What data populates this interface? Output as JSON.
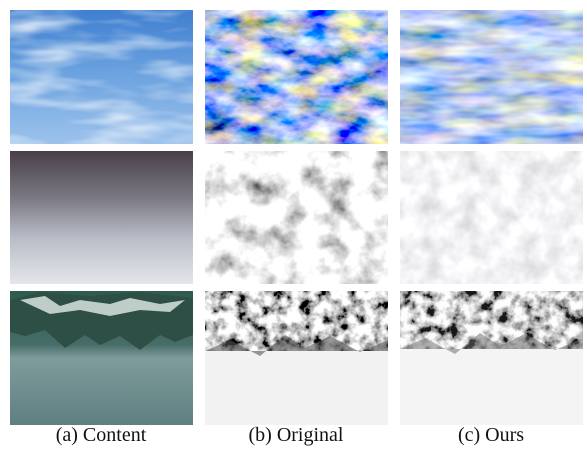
{
  "captions": [
    "(a) Content",
    "(b) Original",
    "(c) Ours"
  ]
}
